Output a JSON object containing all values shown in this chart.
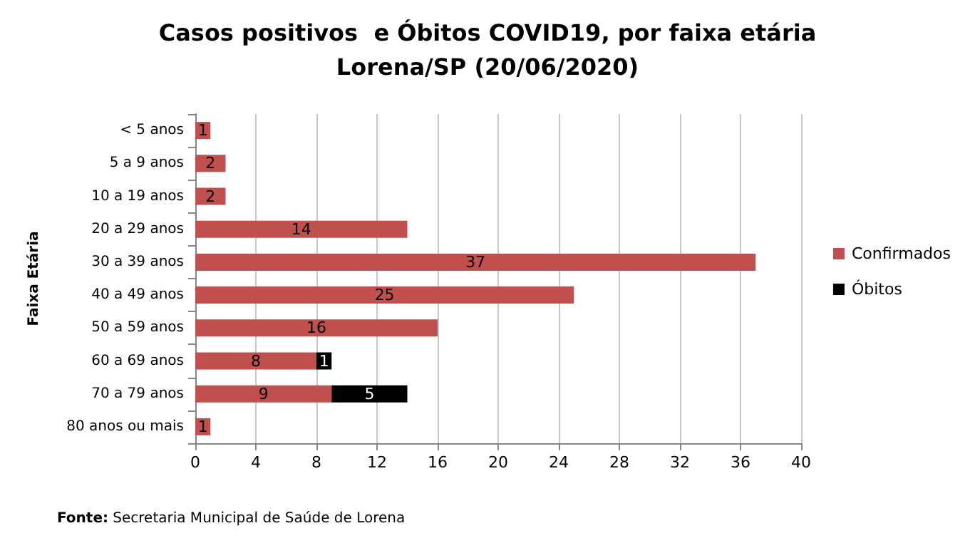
{
  "chart_data": {
    "type": "bar",
    "orientation": "horizontal",
    "stacked": true,
    "title": "Casos positivos  e Óbitos COVID19, por faixa etária",
    "subtitle": "Lorena/SP (20/06/2020)",
    "ylabel": "Faixa Etária",
    "categories": [
      "< 5 anos",
      "5 a 9 anos",
      "10 a 19 anos",
      "20 a 29 anos",
      "30 a 39 anos",
      "40 a 49 anos",
      "50 a 59 anos",
      "60 a 69 anos",
      "70 a 79 anos",
      "80 anos ou mais"
    ],
    "series": [
      {
        "name": "Confirmados",
        "color": "#c0504d",
        "values": [
          1,
          2,
          2,
          14,
          37,
          25,
          16,
          8,
          9,
          1
        ]
      },
      {
        "name": "Óbitos",
        "color": "#000000",
        "values": [
          null,
          null,
          null,
          null,
          null,
          null,
          null,
          1,
          5,
          null
        ]
      }
    ],
    "xlim": [
      0,
      40
    ],
    "xticks": [
      0,
      4,
      8,
      12,
      16,
      20,
      24,
      28,
      32,
      36,
      40
    ],
    "grid": "x",
    "legend": "right",
    "data_labels": true,
    "annotations": [
      "Fonte: Secretaria Municipal de Saúde de Lorena"
    ]
  }
}
